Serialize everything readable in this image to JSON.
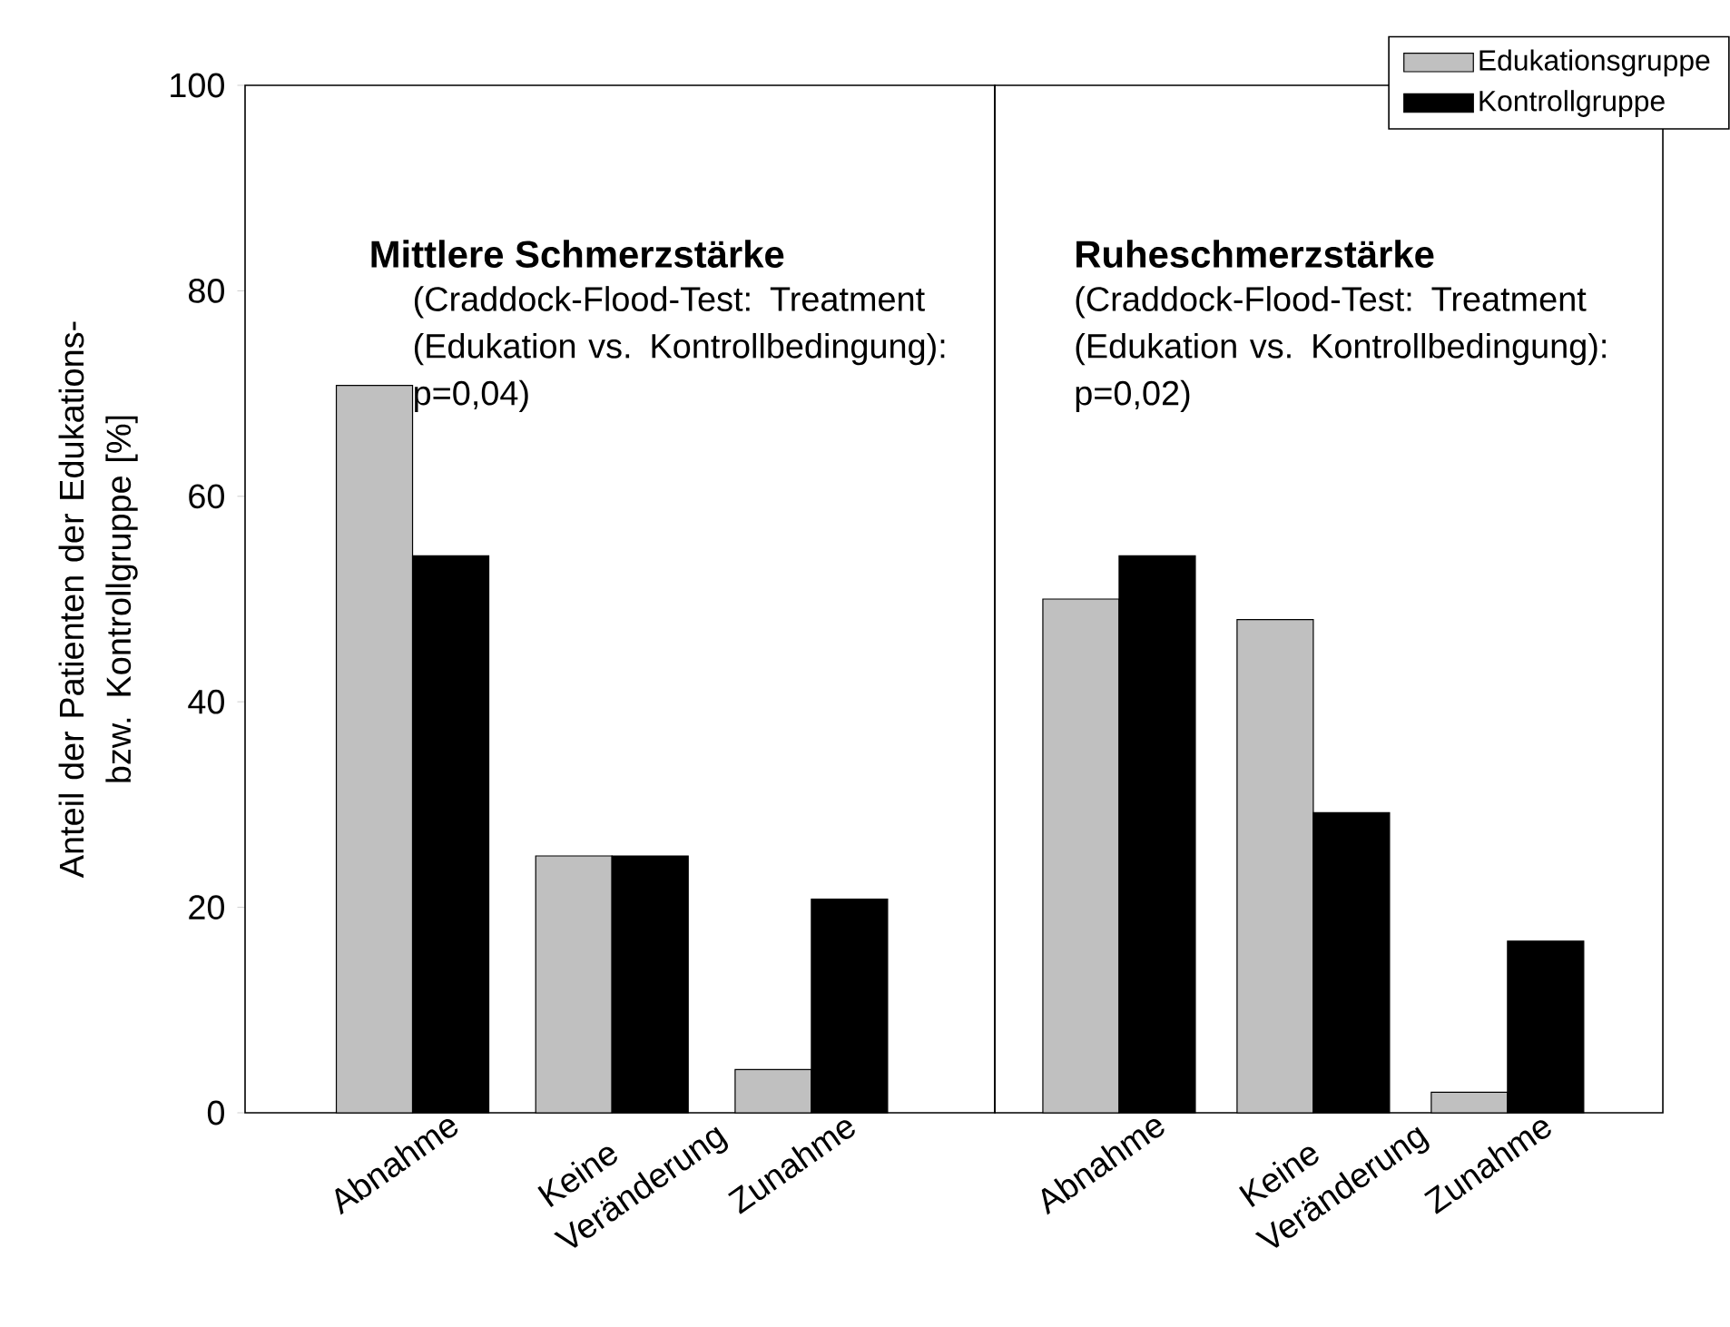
{
  "chart_data": [
    {
      "type": "bar",
      "title": "Mittlere Schmerzstärke",
      "subtitle": "(Craddock-Flood-Test: Treatment (Edukation vs. Kontrollbedingung): p=0,04)",
      "ylabel": "Anteil der Patienten der Edukations- bzw. Kontrollgruppe [%]",
      "categories": [
        "Abnahme",
        "Keine Veränderung",
        "Zunahme"
      ],
      "series": [
        {
          "color": "#c0c0c0",
          "values": [
            70.8,
            25,
            4.2
          ]
        },
        {
          "color": "#000000",
          "values": [
            54.2,
            25,
            20.8
          ]
        }
      ],
      "ylim": [
        0,
        100
      ],
      "yticks": [
        0,
        20,
        40,
        60,
        80,
        100
      ],
      "grid": false
    },
    {
      "type": "bar",
      "title": "Ruheschmerzstärke",
      "subtitle": "(Craddock-Flood-Test: Treatment (Edukation vs. Kontrollbedingung): p=0,02)",
      "categories": [
        "Abnahme",
        "Keine Veränderung",
        "Zunahme"
      ],
      "series": [
        {
          "name": "Edukationsgruppe",
          "color": "#c0c0c0",
          "values": [
            50,
            48,
            2
          ]
        },
        {
          "name": "Kontrollgruppe",
          "color": "#000000",
          "values": [
            54.2,
            29.2,
            16.7
          ]
        }
      ],
      "ylim": [
        0,
        100
      ],
      "yticks": [
        0,
        20,
        40,
        60,
        80,
        100
      ],
      "grid": false,
      "legend": "top right",
      "tick_labels": "x"
    }
  ]
}
